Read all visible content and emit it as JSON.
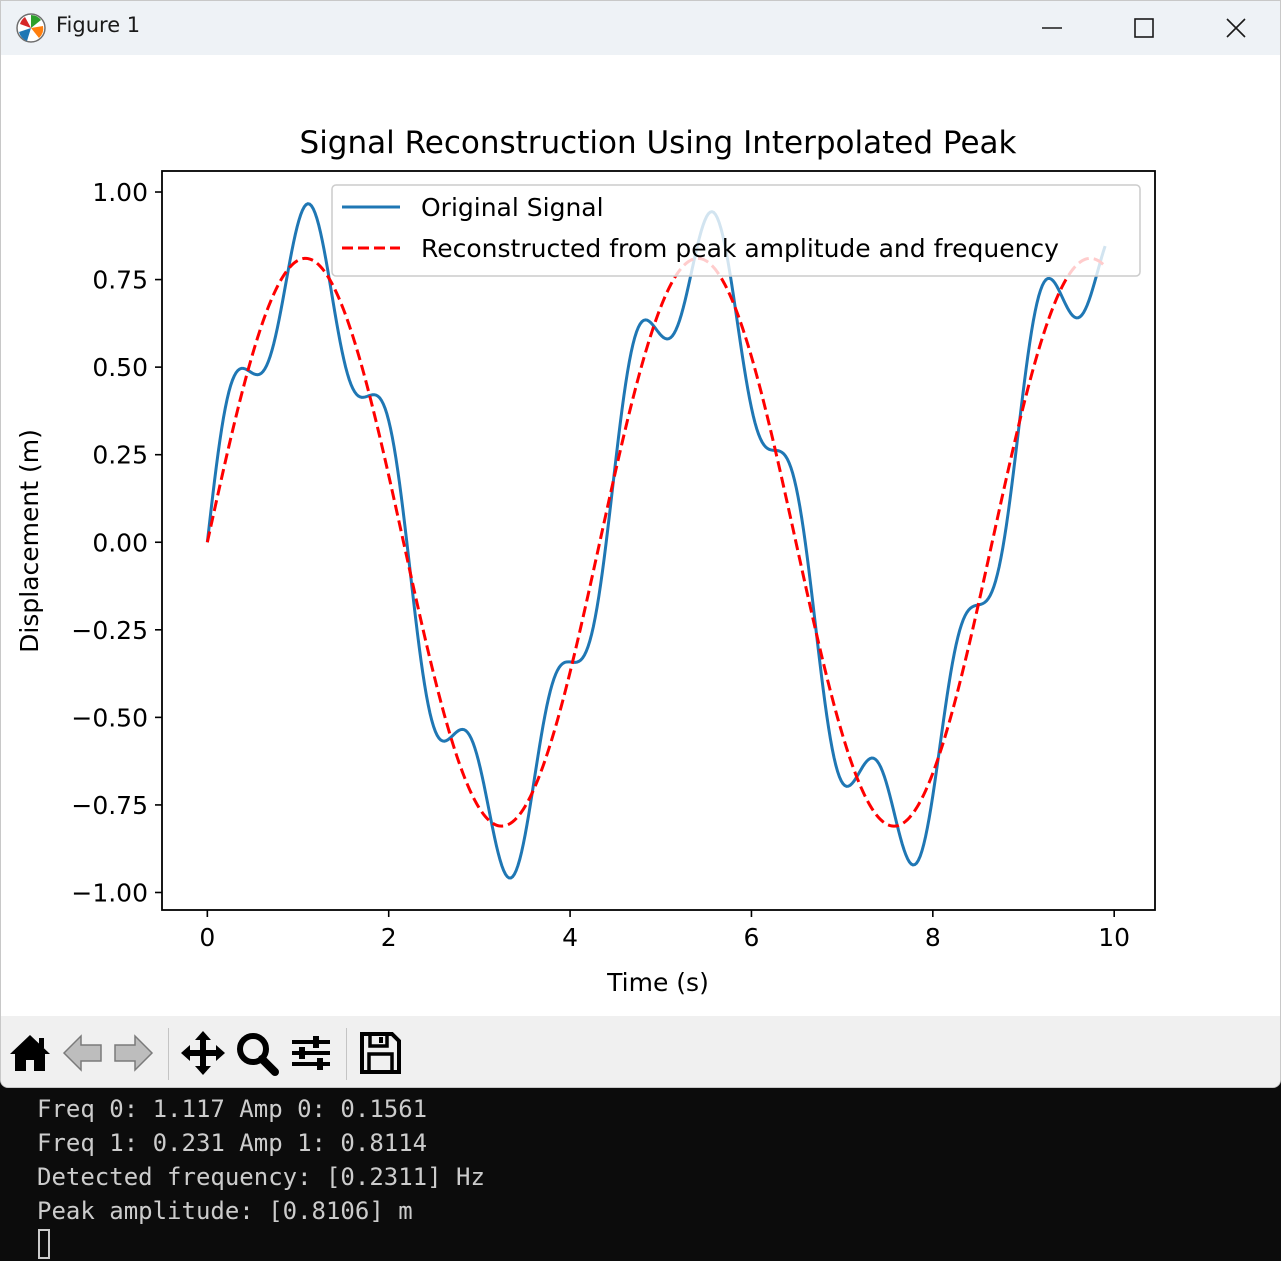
{
  "window": {
    "title": "Figure 1",
    "app_icon": "matplotlib-icon"
  },
  "title_buttons": [
    "minimize-icon",
    "maximize-icon",
    "close-icon"
  ],
  "toolbar": {
    "buttons": [
      "home-icon",
      "back-icon",
      "forward-icon",
      "pan-icon",
      "zoom-icon",
      "configure-subplots-icon",
      "save-icon"
    ]
  },
  "chart_data": {
    "type": "line",
    "title": "Signal Reconstruction Using Interpolated Peak",
    "xlabel": "Time (s)",
    "ylabel": "Displacement (m)",
    "xlim": [
      -0.5,
      10.45
    ],
    "ylim": [
      -1.05,
      1.06
    ],
    "xticks": [
      0,
      2,
      4,
      6,
      8,
      10
    ],
    "xtick_labels": [
      "0",
      "2",
      "4",
      "6",
      "8",
      "10"
    ],
    "yticks": [
      1.0,
      0.75,
      0.5,
      0.25,
      0.0,
      -0.25,
      -0.5,
      -0.75,
      -1.0
    ],
    "ytick_labels": [
      "1.00",
      "0.75",
      "0.50",
      "0.25",
      "0.00",
      "−0.25",
      "−0.50",
      "−0.75",
      "−1.00"
    ],
    "legend_position": "top-right",
    "grid": false,
    "x_range": [
      0,
      9.9
    ],
    "series": [
      {
        "name": "Original Signal",
        "color": "#1f77b4",
        "style": "solid",
        "components": [
          {
            "frequency_hz": 0.231,
            "amplitude_m": 0.8114
          },
          {
            "frequency_hz": 1.117,
            "amplitude_m": 0.1561
          }
        ]
      },
      {
        "name": "Reconstructed from peak amplitude and frequency",
        "color": "#ff0000",
        "style": "dashed",
        "components": [
          {
            "frequency_hz": 0.2311,
            "amplitude_m": 0.8106
          }
        ]
      }
    ]
  },
  "terminal": {
    "lines": [
      "Freq 0: 1.117 Amp 0: 0.1561",
      "Freq 1: 0.231 Amp 1: 0.8114",
      "Detected frequency: [0.2311] Hz",
      "Peak amplitude: [0.8106] m"
    ]
  }
}
